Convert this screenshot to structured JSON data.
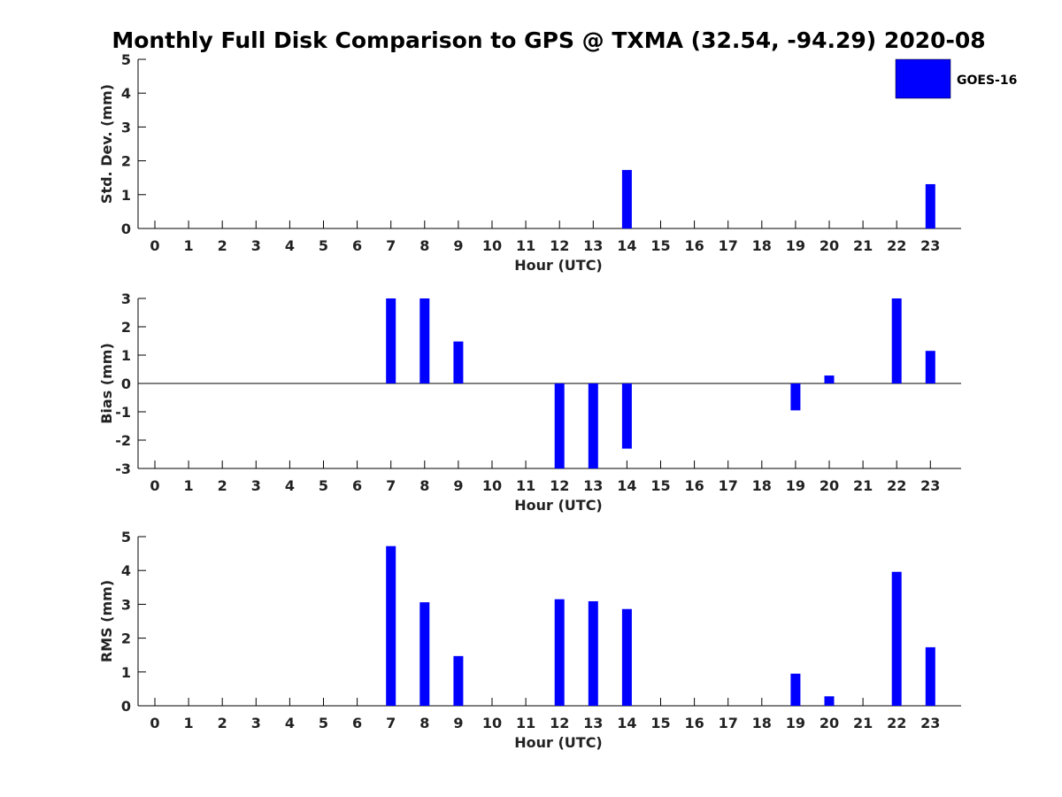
{
  "figure": {
    "title": "Monthly Full Disk Comparison to GPS @ TXMA (32.54, -94.29) 2020-08",
    "legend": {
      "label": "GOES-16",
      "color": "#0000ff",
      "placement": "top-right"
    }
  },
  "chart_data": [
    {
      "type": "bar",
      "xlabel": "Hour (UTC)",
      "ylabel": "Std. Dev. (mm)",
      "ylim": [
        0,
        5
      ],
      "yticks": [
        0,
        1,
        2,
        3,
        4,
        5
      ],
      "categories": [
        "0",
        "1",
        "2",
        "3",
        "4",
        "5",
        "6",
        "7",
        "8",
        "9",
        "10",
        "11",
        "12",
        "13",
        "14",
        "15",
        "16",
        "17",
        "18",
        "19",
        "20",
        "21",
        "22",
        "23"
      ],
      "series": [
        {
          "name": "GOES-16",
          "color": "#0000ff",
          "values": [
            null,
            null,
            null,
            null,
            null,
            null,
            null,
            null,
            null,
            null,
            null,
            null,
            null,
            null,
            1.73,
            null,
            null,
            null,
            null,
            null,
            null,
            null,
            null,
            1.31
          ]
        }
      ],
      "grid": false
    },
    {
      "type": "bar",
      "xlabel": "Hour (UTC)",
      "ylabel": "Bias (mm)",
      "ylim": [
        -3,
        3
      ],
      "yticks": [
        -3,
        -2,
        -1,
        0,
        1,
        2,
        3
      ],
      "zero_line": true,
      "categories": [
        "0",
        "1",
        "2",
        "3",
        "4",
        "5",
        "6",
        "7",
        "8",
        "9",
        "10",
        "11",
        "12",
        "13",
        "14",
        "15",
        "16",
        "17",
        "18",
        "19",
        "20",
        "21",
        "22",
        "23"
      ],
      "series": [
        {
          "name": "GOES-16",
          "color": "#0000ff",
          "values": [
            null,
            null,
            null,
            null,
            null,
            null,
            null,
            3.0,
            3.0,
            1.48,
            null,
            null,
            -3.0,
            -3.0,
            -2.3,
            null,
            null,
            null,
            null,
            -0.95,
            0.28,
            null,
            3.0,
            1.15
          ]
        }
      ],
      "grid": false
    },
    {
      "type": "bar",
      "xlabel": "Hour (UTC)",
      "ylabel": "RMS (mm)",
      "ylim": [
        0,
        5
      ],
      "yticks": [
        0,
        1,
        2,
        3,
        4,
        5
      ],
      "categories": [
        "0",
        "1",
        "2",
        "3",
        "4",
        "5",
        "6",
        "7",
        "8",
        "9",
        "10",
        "11",
        "12",
        "13",
        "14",
        "15",
        "16",
        "17",
        "18",
        "19",
        "20",
        "21",
        "22",
        "23"
      ],
      "series": [
        {
          "name": "GOES-16",
          "color": "#0000ff",
          "values": [
            null,
            null,
            null,
            null,
            null,
            null,
            null,
            4.72,
            3.06,
            1.47,
            null,
            null,
            3.15,
            3.09,
            2.86,
            null,
            null,
            null,
            null,
            0.95,
            0.28,
            null,
            3.96,
            1.73
          ]
        }
      ],
      "grid": false
    }
  ]
}
